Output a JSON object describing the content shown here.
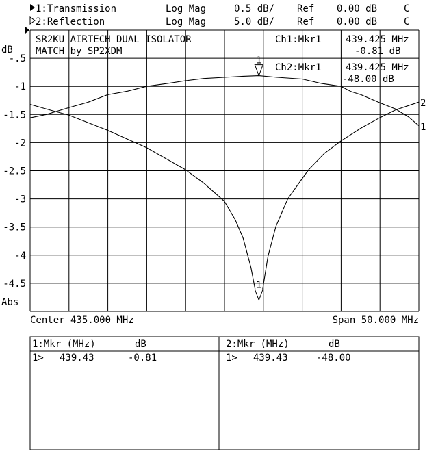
{
  "header": {
    "channels": [
      {
        "label": "1:Transmission",
        "format": "Log Mag",
        "scale": "0.5 dB/",
        "ref_label": "Ref",
        "ref": "0.00 dB",
        "flag": "C",
        "active": true
      },
      {
        "label": "2:Reflection",
        "format": "Log Mag",
        "scale": "5.0 dB/",
        "ref_label": "Ref",
        "ref": "0.00 dB",
        "flag": "C",
        "active": false
      }
    ]
  },
  "annotation": {
    "title_line1": "SR2KU AIRTECH DUAL ISOLATOR",
    "title_line2": "MATCH by SP2XDM"
  },
  "marker_readout": {
    "ch1": {
      "label": "Ch1:Mkr1",
      "freq": "439.425 MHz",
      "value": "-0.81 dB"
    },
    "ch2": {
      "label": "Ch2:Mkr1",
      "freq": "439.425 MHz",
      "value": "-48.00 dB"
    }
  },
  "footer": {
    "center": "Center 435.000 MHz",
    "span": "Span 50.000 MHz"
  },
  "marker_table": {
    "ch1": {
      "header_freq": "1:Mkr (MHz)",
      "header_val": "dB",
      "row_id": "1>",
      "freq": "439.43",
      "value": "-0.81"
    },
    "ch2": {
      "header_freq": "2:Mkr (MHz)",
      "header_val": "dB",
      "row_id": "1>",
      "freq": "439.43",
      "value": "-48.00"
    }
  },
  "chart_data": {
    "type": "line",
    "ylabel": "dB",
    "ybottom_label": "Abs",
    "yticks": [
      "-.5",
      "-1",
      "-1.5",
      "-2",
      "-2.5",
      "-3",
      "-3.5",
      "-4",
      "-4.5"
    ],
    "xlim": [
      410,
      460
    ],
    "grid": true,
    "x_divisions": 10,
    "y_divisions": 10,
    "series": [
      {
        "name": "1",
        "scale_db_per_div": 0.5,
        "ref_db": 0,
        "marker": {
          "freq": 439.425,
          "value": -0.81,
          "label": "1"
        },
        "x": [
          410,
          412.09,
          414.96,
          417.49,
          419.95,
          422.55,
          424.98,
          427.61,
          429.97,
          432.34,
          434.97,
          437.4,
          439.42,
          441.78,
          444.99,
          447.52,
          449.98,
          451.23,
          452.58,
          454.94,
          456.97,
          458.65,
          460
        ],
        "y": [
          -1.56,
          -1.5,
          -1.38,
          -1.28,
          -1.15,
          -1.085,
          -1.0,
          -0.95,
          -0.9,
          -0.86,
          -0.84,
          -0.82,
          -0.81,
          -0.84,
          -0.87,
          -0.95,
          -1.0,
          -1.09,
          -1.15,
          -1.29,
          -1.4,
          -1.54,
          -1.7
        ]
      },
      {
        "name": "2",
        "scale_db_per_div": 5.0,
        "ref_db": 0,
        "marker": {
          "freq": 439.425,
          "value": -48.0,
          "label": "1"
        },
        "x": [
          410,
          412.77,
          414.96,
          419.95,
          424.98,
          429.97,
          432.34,
          434.97,
          436.38,
          437.4,
          438.41,
          438.92,
          439.42,
          439.93,
          440.6,
          441.61,
          443.13,
          444.99,
          445.83,
          447.86,
          449.98,
          452.58,
          454.94,
          456.97,
          460
        ],
        "y": [
          -13.2,
          -14.3,
          -15.1,
          -17.8,
          -20.9,
          -24.8,
          -27.2,
          -30.4,
          -33.7,
          -37.0,
          -42.2,
          -45.9,
          -47.9,
          -45.9,
          -40.2,
          -34.9,
          -30.0,
          -26.4,
          -24.8,
          -21.9,
          -19.7,
          -17.4,
          -15.6,
          -14.2,
          -12.8
        ]
      }
    ]
  }
}
